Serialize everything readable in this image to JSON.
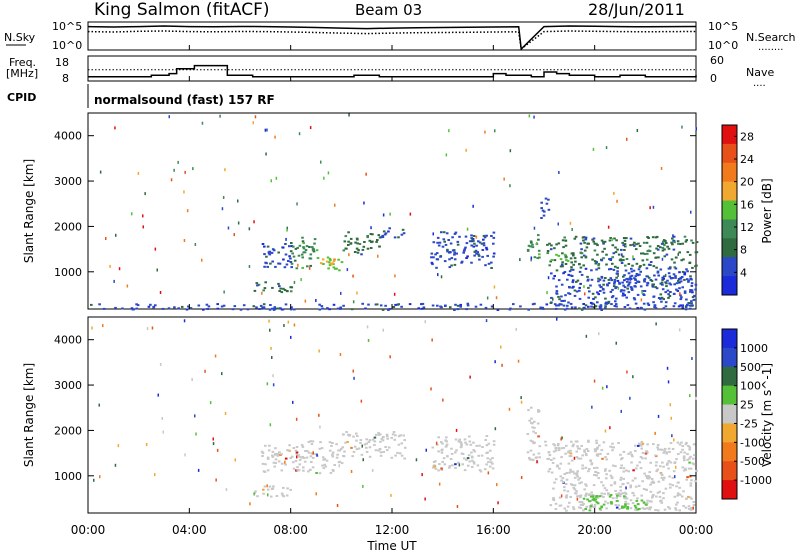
{
  "header": {
    "station": "King Salmon (fitACF)",
    "beam": "Beam 03",
    "date": "28/Jun/2011"
  },
  "noise_panel": {
    "left_label": "N.Sky",
    "left_ticks": [
      "10^5",
      "10^0"
    ],
    "right_ticks": [
      "10^5",
      "10^0"
    ],
    "right_label": "N.Search",
    "right_legend_line": "........"
  },
  "freq_panel": {
    "label_line1": "Freq.",
    "label_line2": "[MHz]",
    "left_ticks": [
      "18",
      "8"
    ],
    "right_ticks": [
      "60",
      "0"
    ],
    "right_label": "Nave",
    "right_legend_line": "...."
  },
  "cpid_panel": {
    "label": "CPID",
    "program": "normalsound (fast) 157 RF"
  },
  "x_axis": {
    "label": "Time UT",
    "ticks": [
      "00:00",
      "04:00",
      "08:00",
      "12:00",
      "16:00",
      "20:00",
      "00:00"
    ]
  },
  "colors": {
    "power_scale": [
      "#1b2bd9",
      "#2a48c8",
      "#2f6b3f",
      "#3e8a57",
      "#54c038",
      "#f0a830",
      "#f07a1c",
      "#e8501a",
      "#e01010"
    ],
    "velocity_scale": [
      "#1b2bd9",
      "#2a48c8",
      "#2f6b3f",
      "#54c038",
      "#c8c8c8",
      "#f0a830",
      "#f07a1c",
      "#e8501a",
      "#e01010"
    ],
    "ground_scatter": "#bdbdbd"
  },
  "chart_data": [
    {
      "type": "line",
      "panel": "noise",
      "x_unit": "hours UT",
      "xlim": [
        0,
        24
      ],
      "yscale": "log",
      "series": [
        {
          "name": "N.Sky",
          "style": "solid",
          "x": [
            0,
            1,
            2,
            3,
            4,
            5,
            6,
            7,
            8,
            9,
            10,
            11,
            12,
            13,
            14,
            15,
            16,
            17,
            17.1,
            18,
            19,
            20,
            21,
            22,
            23,
            24
          ],
          "y": [
            30000,
            25000,
            30000,
            40000,
            30000,
            28000,
            32000,
            30000,
            25000,
            20000,
            15000,
            12000,
            15000,
            18000,
            20000,
            22000,
            25000,
            28000,
            1,
            30000,
            40000,
            35000,
            30000,
            28000,
            30000,
            32000
          ]
        },
        {
          "name": "N.Search",
          "style": "dotted",
          "x": [
            0,
            1,
            2,
            3,
            4,
            5,
            6,
            7,
            8,
            9,
            10,
            11,
            12,
            13,
            14,
            15,
            16,
            17,
            17.1,
            18,
            19,
            20,
            21,
            22,
            23,
            24
          ],
          "y": [
            3000,
            2500,
            3500,
            4000,
            3000,
            2800,
            3200,
            3000,
            2500,
            2000,
            1500,
            1200,
            1500,
            1800,
            2000,
            2200,
            2500,
            2800,
            1,
            3000,
            4000,
            3500,
            3000,
            2800,
            3000,
            3200
          ]
        }
      ]
    },
    {
      "type": "line",
      "panel": "frequency",
      "x_unit": "hours UT",
      "xlim": [
        0,
        24
      ],
      "left_ylim": [
        8,
        18
      ],
      "right_ylim": [
        0,
        60
      ],
      "series": [
        {
          "name": "Freq.",
          "style": "solid",
          "x": [
            0,
            1.5,
            2.5,
            3.2,
            3.5,
            4.2,
            5.5,
            6.5,
            8.2,
            9.5,
            10.5,
            11.5,
            13,
            14.5,
            15.5,
            16,
            16.5,
            17.5,
            18,
            18.5,
            19,
            20,
            21,
            22,
            23,
            24
          ],
          "y": [
            10,
            10,
            11,
            12,
            15,
            17,
            11,
            10,
            10,
            10,
            11,
            10,
            10,
            10,
            10,
            12,
            11,
            10,
            13,
            12,
            11,
            10,
            11,
            10,
            10,
            11
          ]
        },
        {
          "name": "Nave",
          "style": "dotted",
          "x": [
            0,
            24
          ],
          "y": [
            34,
            34
          ]
        }
      ]
    },
    {
      "type": "heatmap",
      "panel": "power",
      "title": "",
      "xlabel": "Time UT",
      "ylabel": "Slant Range [km]",
      "x_unit": "hours UT",
      "xlim": [
        0,
        24
      ],
      "ylim": [
        180,
        4500
      ],
      "y_ticks": [
        1000,
        2000,
        3000,
        4000
      ],
      "colorbar_label": "Power [dB]",
      "colorbar_ticks": [
        4,
        8,
        12,
        16,
        20,
        24,
        28
      ],
      "colorbar_range": [
        0,
        30
      ],
      "regions": [
        {
          "x0": 6.8,
          "x1": 8.0,
          "y0": 1100,
          "y1": 1700,
          "value": 6
        },
        {
          "x0": 6.5,
          "x1": 8.0,
          "y0": 550,
          "y1": 800,
          "value": 7
        },
        {
          "x0": 8.0,
          "x1": 9.0,
          "y0": 1100,
          "y1": 1800,
          "value": 10
        },
        {
          "x0": 9.0,
          "x1": 10.0,
          "y0": 1050,
          "y1": 1350,
          "value": 14
        },
        {
          "x0": 9.2,
          "x1": 9.8,
          "y0": 1150,
          "y1": 1300,
          "value": 17
        },
        {
          "x0": 10.0,
          "x1": 11.5,
          "y0": 1400,
          "y1": 1900,
          "value": 8
        },
        {
          "x0": 11.5,
          "x1": 12.5,
          "y0": 1750,
          "y1": 2000,
          "value": 6
        },
        {
          "x0": 13.5,
          "x1": 16.0,
          "y0": 1100,
          "y1": 1900,
          "value": 6
        },
        {
          "x0": 17.3,
          "x1": 17.8,
          "y0": 1300,
          "y1": 1900,
          "value": 11
        },
        {
          "x0": 18.0,
          "x1": 24.0,
          "y0": 1100,
          "y1": 1800,
          "value": 8
        },
        {
          "x0": 18.2,
          "x1": 19.0,
          "y0": 1250,
          "y1": 1400,
          "value": 14
        },
        {
          "x0": 18.2,
          "x1": 24.0,
          "y0": 250,
          "y1": 1100,
          "value": 6
        },
        {
          "x0": 20.0,
          "x1": 24.0,
          "y0": 700,
          "y1": 950,
          "value": 6
        },
        {
          "x0": 17.8,
          "x1": 18.2,
          "y0": 2200,
          "y1": 2700,
          "value": 6
        },
        {
          "x0": 0.0,
          "x1": 24.0,
          "y0": 180,
          "y1": 320,
          "value": 5
        }
      ]
    },
    {
      "type": "heatmap",
      "panel": "velocity",
      "title": "",
      "xlabel": "Time UT",
      "ylabel": "Slant Range [km]",
      "x_unit": "hours UT",
      "xlim": [
        0,
        24
      ],
      "ylim": [
        180,
        4500
      ],
      "y_ticks": [
        1000,
        2000,
        3000,
        4000
      ],
      "colorbar_label": "Velocity [m s^-1]",
      "colorbar_ticks": [
        1000,
        500,
        100,
        25,
        -25,
        -100,
        -500,
        -1000
      ],
      "colorbar_range": [
        -1200,
        1200
      ],
      "regions": [
        {
          "x0": 6.8,
          "x1": 8.0,
          "y0": 1100,
          "y1": 1700,
          "value": 0
        },
        {
          "x0": 6.5,
          "x1": 8.0,
          "y0": 550,
          "y1": 800,
          "value": 0
        },
        {
          "x0": 8.0,
          "x1": 10.0,
          "y0": 1050,
          "y1": 1800,
          "value": 0
        },
        {
          "x0": 10.0,
          "x1": 12.5,
          "y0": 1400,
          "y1": 2000,
          "value": 0
        },
        {
          "x0": 13.5,
          "x1": 16.0,
          "y0": 1100,
          "y1": 1900,
          "value": 0
        },
        {
          "x0": 17.3,
          "x1": 17.8,
          "y0": 1300,
          "y1": 2600,
          "value": 0
        },
        {
          "x0": 18.0,
          "x1": 24.0,
          "y0": 1100,
          "y1": 1800,
          "value": 0
        },
        {
          "x0": 18.2,
          "x1": 24.0,
          "y0": 250,
          "y1": 1100,
          "value": 0
        },
        {
          "x0": 19.5,
          "x1": 22.0,
          "y0": 250,
          "y1": 600,
          "value": 150
        }
      ]
    }
  ]
}
